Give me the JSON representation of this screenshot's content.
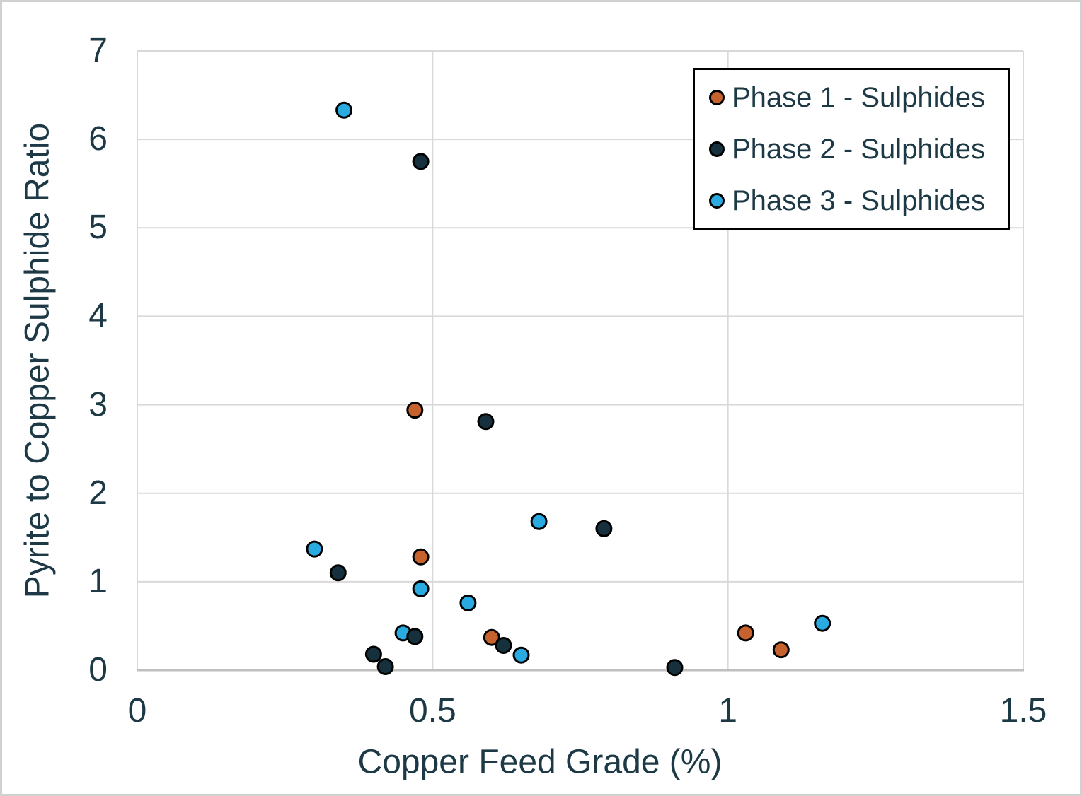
{
  "chart_data": {
    "type": "scatter",
    "title": "",
    "xlabel": "Copper Feed Grade (%)",
    "ylabel": "Pyrite to Copper Sulphide Ratio",
    "xlim": [
      0,
      1.5
    ],
    "ylim": [
      0,
      7
    ],
    "x_ticks": [
      0,
      0.5,
      1,
      1.5
    ],
    "x_tick_labels": [
      "0",
      "0.5",
      "1",
      "1.5"
    ],
    "y_ticks": [
      0,
      1,
      2,
      3,
      4,
      5,
      6,
      7
    ],
    "y_tick_labels": [
      "0",
      "1",
      "2",
      "3",
      "4",
      "5",
      "6",
      "7"
    ],
    "grid": true,
    "legend_position": "top-right",
    "series": [
      {
        "name": "Phase 1 - Sulphides",
        "color": "#c5622e",
        "points": [
          [
            0.47,
            2.94
          ],
          [
            0.48,
            1.28
          ],
          [
            0.6,
            0.37
          ],
          [
            1.03,
            0.42
          ],
          [
            1.09,
            0.23
          ]
        ]
      },
      {
        "name": "Phase 2 - Sulphides",
        "color": "#16313d",
        "points": [
          [
            0.48,
            5.75
          ],
          [
            0.59,
            2.81
          ],
          [
            0.34,
            1.1
          ],
          [
            0.79,
            1.6
          ],
          [
            0.47,
            0.38
          ],
          [
            0.4,
            0.18
          ],
          [
            0.42,
            0.04
          ],
          [
            0.62,
            0.28
          ],
          [
            0.91,
            0.03
          ]
        ]
      },
      {
        "name": "Phase 3 - Sulphides",
        "color": "#29abe2",
        "points": [
          [
            0.35,
            6.33
          ],
          [
            0.3,
            1.37
          ],
          [
            0.48,
            0.92
          ],
          [
            0.56,
            0.76
          ],
          [
            0.45,
            0.42
          ],
          [
            0.68,
            1.68
          ],
          [
            0.65,
            0.17
          ],
          [
            1.16,
            0.53
          ]
        ]
      }
    ],
    "colors": {
      "text": "#1c3945",
      "gridline": "#d9d9d9",
      "axis_line": "#bfbfbf",
      "marker_outline": "#000000",
      "legend_border": "#000000",
      "background": "#ffffff"
    }
  }
}
